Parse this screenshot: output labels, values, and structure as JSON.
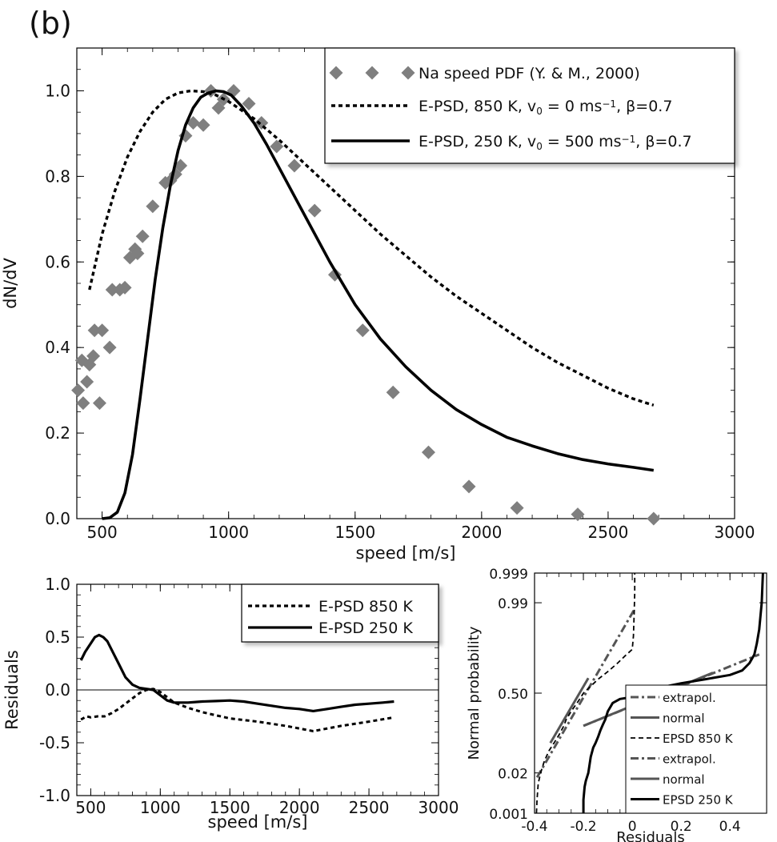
{
  "panel_label": "(b)",
  "chart_data": [
    {
      "id": "main",
      "type": "line",
      "title": "",
      "xlabel": "speed [m/s]",
      "ylabel": "dN/dV",
      "xlim": [
        400,
        3000
      ],
      "ylim": [
        0,
        1.1
      ],
      "xticks": [
        500,
        1000,
        1500,
        2000,
        2500,
        3000
      ],
      "xtick_labels": [
        "500",
        "1000",
        "1500",
        "2000",
        "2500",
        "3000"
      ],
      "yticks": [
        0,
        0.2,
        0.4,
        0.6,
        0.8,
        1.0
      ],
      "ytick_labels": [
        "0.0",
        "0.2",
        "0.4",
        "0.6",
        "0.8",
        "1.0"
      ],
      "legend_position": "top-right",
      "series": [
        {
          "name": "Na speed PDF (Y. & M., 2000)",
          "style": "diamond-markers",
          "color": "#7f7f7f",
          "x": [
            405,
            420,
            425,
            440,
            450,
            465,
            470,
            490,
            500,
            530,
            540,
            570,
            590,
            610,
            630,
            640,
            660,
            700,
            750,
            770,
            790,
            810,
            830,
            860,
            900,
            930,
            960,
            980,
            1020,
            1080,
            1130,
            1190,
            1260,
            1340,
            1420,
            1530,
            1650,
            1790,
            1950,
            2140,
            2380,
            2680
          ],
          "y": [
            0.3,
            0.37,
            0.27,
            0.32,
            0.36,
            0.38,
            0.44,
            0.27,
            0.44,
            0.4,
            0.535,
            0.535,
            0.54,
            0.61,
            0.63,
            0.62,
            0.66,
            0.73,
            0.785,
            0.79,
            0.805,
            0.825,
            0.895,
            0.925,
            0.92,
            1.0,
            0.96,
            0.98,
            1.0,
            0.97,
            0.925,
            0.87,
            0.825,
            0.72,
            0.57,
            0.44,
            0.295,
            0.155,
            0.075,
            0.025,
            0.01,
            0.0
          ]
        },
        {
          "name": "E-PSD, 850 K, v0 = 0 ms−1, β=0.7",
          "legend_parts": [
            "E-PSD, 850 K, v",
            "0",
            " = 0 ms",
            "−1",
            ", β=0.7"
          ],
          "style": "dotted",
          "color": "#000000",
          "x": [
            450,
            500,
            550,
            600,
            650,
            700,
            750,
            800,
            850,
            900,
            950,
            1000,
            1050,
            1100,
            1200,
            1300,
            1400,
            1500,
            1600,
            1700,
            1800,
            1900,
            2000,
            2100,
            2200,
            2300,
            2400,
            2500,
            2600,
            2680
          ],
          "y": [
            0.535,
            0.665,
            0.765,
            0.845,
            0.905,
            0.95,
            0.98,
            0.995,
            1.0,
            0.998,
            0.99,
            0.975,
            0.955,
            0.935,
            0.885,
            0.83,
            0.775,
            0.72,
            0.665,
            0.615,
            0.565,
            0.52,
            0.48,
            0.44,
            0.4,
            0.365,
            0.335,
            0.305,
            0.28,
            0.265
          ]
        },
        {
          "name": "E-PSD, 250 K, v0 = 500 ms−1, β=0.7",
          "legend_parts": [
            "E-PSD, 250 K, v",
            "0",
            " = 500 ms",
            "−1",
            ", β=0.7"
          ],
          "style": "solid",
          "color": "#000000",
          "x": [
            500,
            530,
            560,
            590,
            620,
            650,
            680,
            710,
            740,
            770,
            800,
            830,
            860,
            890,
            920,
            950,
            980,
            1010,
            1050,
            1100,
            1150,
            1200,
            1300,
            1400,
            1500,
            1600,
            1700,
            1800,
            1900,
            2000,
            2100,
            2200,
            2300,
            2400,
            2500,
            2600,
            2680
          ],
          "y": [
            0.0,
            0.002,
            0.015,
            0.06,
            0.15,
            0.28,
            0.42,
            0.56,
            0.68,
            0.78,
            0.86,
            0.92,
            0.96,
            0.985,
            0.995,
            1.0,
            0.998,
            0.99,
            0.965,
            0.925,
            0.875,
            0.82,
            0.71,
            0.6,
            0.5,
            0.42,
            0.355,
            0.3,
            0.255,
            0.22,
            0.19,
            0.17,
            0.152,
            0.138,
            0.128,
            0.12,
            0.113
          ]
        }
      ]
    },
    {
      "id": "residuals",
      "type": "line",
      "title": "",
      "xlabel": "speed [m/s]",
      "ylabel": "Residuals",
      "xlim": [
        400,
        3000
      ],
      "ylim": [
        -1.0,
        1.0
      ],
      "xticks": [
        500,
        1000,
        1500,
        2000,
        2500,
        3000
      ],
      "xtick_labels": [
        "500",
        "1000",
        "1500",
        "2000",
        "2500",
        "3000"
      ],
      "yticks": [
        -1.0,
        -0.5,
        0.0,
        0.5,
        1.0
      ],
      "ytick_labels": [
        "-1.0",
        "-0.5",
        "0.0",
        "0.5",
        "1.0"
      ],
      "zero_line": true,
      "legend_position": "top-right",
      "series": [
        {
          "name": "E-PSD 850 K",
          "style": "dotted",
          "color": "#000000",
          "x": [
            430,
            470,
            500,
            550,
            600,
            650,
            700,
            750,
            800,
            850,
            900,
            950,
            1000,
            1050,
            1100,
            1200,
            1300,
            1400,
            1500,
            1700,
            1900,
            2100,
            2300,
            2500,
            2680
          ],
          "y": [
            -0.28,
            -0.25,
            -0.26,
            -0.25,
            -0.25,
            -0.22,
            -0.18,
            -0.13,
            -0.08,
            -0.03,
            0.0,
            0.01,
            -0.02,
            -0.07,
            -0.12,
            -0.17,
            -0.21,
            -0.24,
            -0.27,
            -0.3,
            -0.34,
            -0.39,
            -0.34,
            -0.3,
            -0.26
          ]
        },
        {
          "name": "E-PSD 250 K",
          "style": "solid",
          "color": "#000000",
          "x": [
            430,
            460,
            500,
            530,
            560,
            590,
            620,
            650,
            700,
            750,
            800,
            850,
            900,
            950,
            1000,
            1050,
            1100,
            1200,
            1300,
            1400,
            1500,
            1600,
            1700,
            1800,
            1900,
            2000,
            2100,
            2200,
            2300,
            2400,
            2500,
            2600,
            2680
          ],
          "y": [
            0.28,
            0.36,
            0.44,
            0.5,
            0.52,
            0.5,
            0.46,
            0.38,
            0.25,
            0.12,
            0.05,
            0.02,
            0.01,
            0.0,
            -0.05,
            -0.1,
            -0.12,
            -0.12,
            -0.11,
            -0.105,
            -0.1,
            -0.11,
            -0.13,
            -0.15,
            -0.17,
            -0.18,
            -0.2,
            -0.18,
            -0.16,
            -0.14,
            -0.13,
            -0.12,
            -0.11
          ]
        }
      ]
    },
    {
      "id": "normal-probability",
      "type": "line",
      "title": "",
      "xlabel": "Residuals",
      "ylabel": "Normal probability",
      "xlim": [
        -0.4,
        0.55
      ],
      "ylim": [
        0.001,
        0.999
      ],
      "xticks": [
        -0.4,
        -0.2,
        0.0,
        0.2,
        0.4
      ],
      "xtick_labels": [
        "-0.4",
        "-0.2",
        "0",
        "0.2",
        "0.4"
      ],
      "yticks": [
        0.001,
        0.02,
        0.5,
        0.99,
        0.999
      ],
      "ytick_labels": [
        "0.001",
        "0.02",
        "0.50",
        "0.99",
        "0.999"
      ],
      "legend_position": "bottom-right",
      "series": [
        {
          "name": "extrapol.",
          "group": "850",
          "style": "dashdot",
          "color": "#555555",
          "x": [
            -0.39,
            0.01
          ],
          "y": [
            0.015,
            0.985
          ]
        },
        {
          "name": "normal",
          "group": "850",
          "style": "solid",
          "color": "#555555",
          "x": [
            -0.335,
            -0.18
          ],
          "y": [
            0.1,
            0.65
          ]
        },
        {
          "name": "EPSD 850 K",
          "group": "850",
          "style": "dashed",
          "color": "#000000",
          "x": [
            -0.392,
            -0.39,
            -0.385,
            -0.375,
            -0.36,
            -0.34,
            -0.32,
            -0.3,
            -0.28,
            -0.27,
            -0.25,
            -0.22,
            -0.2,
            -0.17,
            -0.14,
            -0.1,
            -0.06,
            -0.03,
            0.0,
            0.005,
            0.008,
            0.01,
            0.01
          ],
          "y": [
            0.001,
            0.003,
            0.01,
            0.02,
            0.04,
            0.07,
            0.1,
            0.14,
            0.2,
            0.25,
            0.32,
            0.42,
            0.5,
            0.57,
            0.64,
            0.71,
            0.78,
            0.83,
            0.87,
            0.93,
            0.98,
            0.995,
            0.999
          ]
        },
        {
          "name": "extrapol.",
          "group": "250",
          "style": "dashdot",
          "color": "#555555",
          "x": [
            -0.2,
            0.52
          ],
          "y": [
            0.2,
            0.84
          ]
        },
        {
          "name": "normal",
          "group": "250",
          "style": "solid",
          "color": "#555555",
          "x": [
            -0.2,
            0.33
          ],
          "y": [
            0.2,
            0.7
          ]
        },
        {
          "name": "EPSD 250 K",
          "group": "250",
          "style": "solid",
          "color": "#000000",
          "x": [
            -0.2,
            -0.2,
            -0.195,
            -0.19,
            -0.18,
            -0.17,
            -0.16,
            -0.15,
            -0.14,
            -0.13,
            -0.12,
            -0.11,
            -0.1,
            -0.08,
            -0.05,
            0.0,
            0.05,
            0.1,
            0.2,
            0.3,
            0.4,
            0.45,
            0.48,
            0.5,
            0.51,
            0.52,
            0.53,
            0.535
          ],
          "y": [
            0.001,
            0.003,
            0.008,
            0.012,
            0.02,
            0.05,
            0.08,
            0.1,
            0.13,
            0.17,
            0.21,
            0.25,
            0.32,
            0.4,
            0.44,
            0.46,
            0.5,
            0.55,
            0.6,
            0.64,
            0.68,
            0.72,
            0.78,
            0.84,
            0.9,
            0.95,
            0.99,
            0.999
          ]
        }
      ]
    }
  ]
}
